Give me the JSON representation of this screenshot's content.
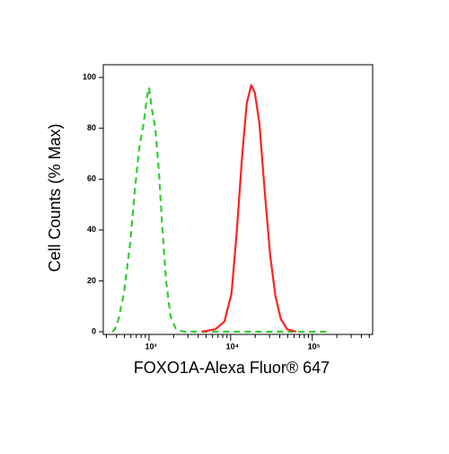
{
  "chart_data": {
    "type": "line",
    "xlabel": "FOXO1A-Alexa Fluor® 647",
    "ylabel": "Cell Counts (% Max)",
    "xscale": "log",
    "xlim": [
      275,
      550000
    ],
    "ylim": [
      0,
      105
    ],
    "xticks": [
      {
        "value": 1000,
        "label": "10³"
      },
      {
        "value": 10000,
        "label": "10⁴"
      },
      {
        "value": 100000,
        "label": "10⁵"
      }
    ],
    "xminorticks": [
      300,
      400,
      500,
      600,
      700,
      800,
      900,
      2000,
      3000,
      4000,
      5000,
      6000,
      7000,
      8000,
      9000,
      20000,
      30000,
      40000,
      50000,
      60000,
      70000,
      80000,
      90000,
      200000,
      300000,
      400000,
      500000
    ],
    "yticks": [
      0,
      20,
      40,
      60,
      80,
      100
    ],
    "series": [
      {
        "color": "#33cc33",
        "linestyle": "dashed",
        "x": [
          354,
          382,
          423,
          492,
          588,
          667,
          757,
          859,
          951,
          1000,
          1079,
          1194,
          1321,
          1462,
          1618,
          1837,
          2138,
          2683,
          150000
        ],
        "values": [
          0,
          1,
          5,
          15,
          35,
          55,
          72,
          82,
          93,
          96,
          88,
          80,
          63,
          40,
          20,
          6,
          1,
          0,
          0
        ]
      },
      {
        "color": "#ff2222",
        "linestyle": "solid",
        "x": [
          4446,
          6500,
          8380,
          10250,
          11930,
          13900,
          15780,
          17900,
          19800,
          22500,
          26200,
          30500,
          35400,
          41200,
          49200,
          63400
        ],
        "values": [
          0,
          1,
          4,
          15,
          40,
          70,
          90,
          97,
          94,
          82,
          55,
          30,
          14,
          5,
          1,
          0
        ]
      }
    ]
  }
}
